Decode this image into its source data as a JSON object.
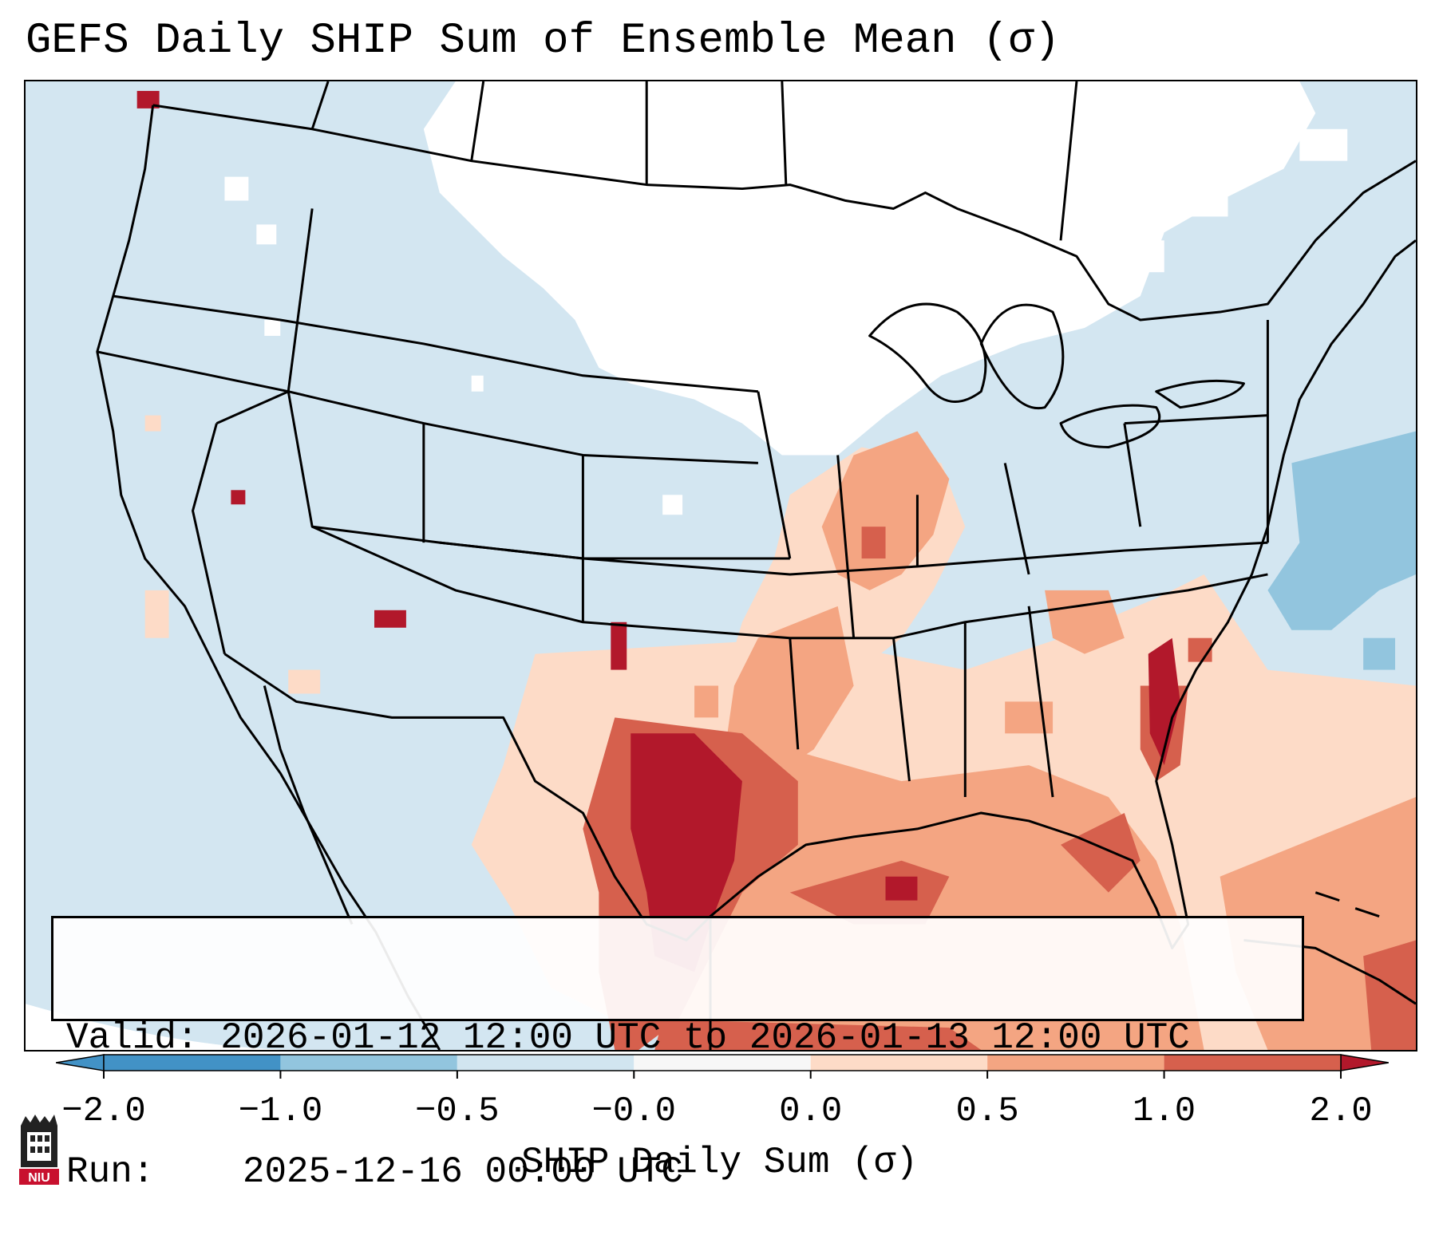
{
  "title": "GEFS Daily SHIP Sum of Ensemble Mean (σ)",
  "valid_label": "Valid:",
  "valid_text": "2026-01-12 12:00 UTC to 2026-01-13 12:00 UTC",
  "run_label": "Run:",
  "run_text": "2025-12-16 00:00 UTC",
  "colorbar": {
    "label": "SHIP Daily Sum (σ)",
    "ticks": [
      "−2.0",
      "−1.0",
      "−0.5",
      "−0.0",
      "0.0",
      "0.5",
      "1.0",
      "2.0"
    ],
    "colors": [
      "#4292c6",
      "#92c5de",
      "#d1e5f0",
      "#f7f7f7",
      "#fddbc7",
      "#f4a582",
      "#d6604d",
      "#b2182b"
    ],
    "extend": "both"
  },
  "logo_text": "NIU"
}
